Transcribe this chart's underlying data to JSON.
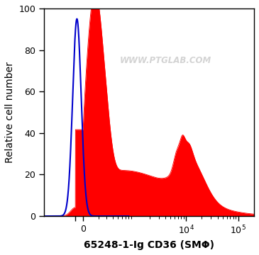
{
  "title": "",
  "xlabel": "65248-1-Ig CD36 (SMΦ)",
  "ylabel": "Relative cell number",
  "ylim": [
    0,
    100
  ],
  "yticks": [
    0,
    20,
    40,
    60,
    80,
    100
  ],
  "watermark": "WWW.PTGLAB.COM",
  "watermark_color": "#cccccc",
  "blue_color": "#0000cc",
  "red_color": "#ff0000",
  "red_fill_alpha": 1.0,
  "background_color": "#ffffff",
  "xlabel_fontsize": 10,
  "ylabel_fontsize": 10,
  "tick_fontsize": 9,
  "linthresh": 300,
  "linscale": 0.4
}
